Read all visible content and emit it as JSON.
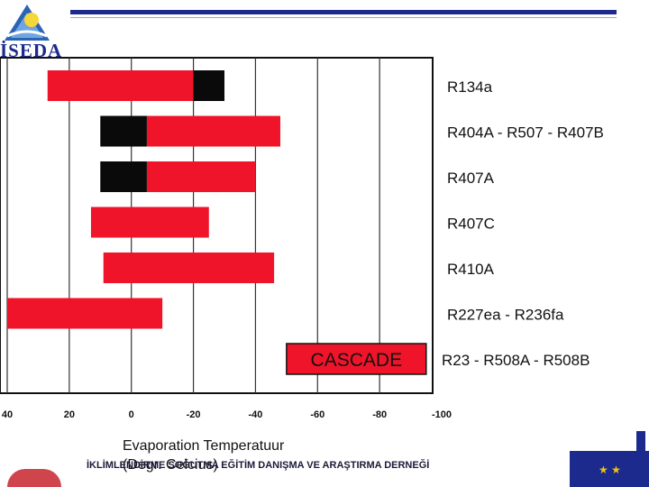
{
  "header": {
    "logo_text": "İSEDA"
  },
  "footer": {
    "association": "İKLİMLENDİRME SOĞUTMA EĞİTİM DANIŞMA VE ARAŞTIRMA DERNEĞİ"
  },
  "chart_data": {
    "type": "bar",
    "orientation": "horizontal-range",
    "xlabel": "Evaporation Temperatuur (Degr. Celcius)",
    "ylabel": "",
    "xlim": [
      40,
      -100
    ],
    "x_ticks": [
      "40",
      "20",
      "0",
      "-20",
      "-40",
      "-60",
      "-80",
      "-100"
    ],
    "grid": true,
    "colors": {
      "primary": "#f0142a",
      "extended": "#0a0a0a"
    },
    "categories": [
      "R134a",
      "R404A - R507 - R407B",
      "R407A",
      "R407C",
      "R410A",
      "R227ea - R236fa",
      "R23 - R508A - R508B"
    ],
    "ranges": [
      {
        "label": "R134a",
        "red": [
          27,
          -20
        ],
        "black": [
          -20,
          -30
        ]
      },
      {
        "label": "R404A - R507 - R407B",
        "red": [
          -5,
          -48
        ],
        "black": [
          10,
          -5
        ]
      },
      {
        "label": "R407A",
        "red": [
          -5,
          -40
        ],
        "black": [
          10,
          -5
        ]
      },
      {
        "label": "R407C",
        "red": [
          13,
          -25
        ],
        "black": null
      },
      {
        "label": "R410A",
        "red": [
          9,
          -46
        ],
        "black": null
      },
      {
        "label": "R227ea - R236fa",
        "red": [
          40,
          -10
        ],
        "black": null
      },
      {
        "label": "R23 - R508A - R508B",
        "red": [
          -50,
          -95
        ],
        "black": null,
        "bar_text": "CASCADE"
      }
    ]
  }
}
